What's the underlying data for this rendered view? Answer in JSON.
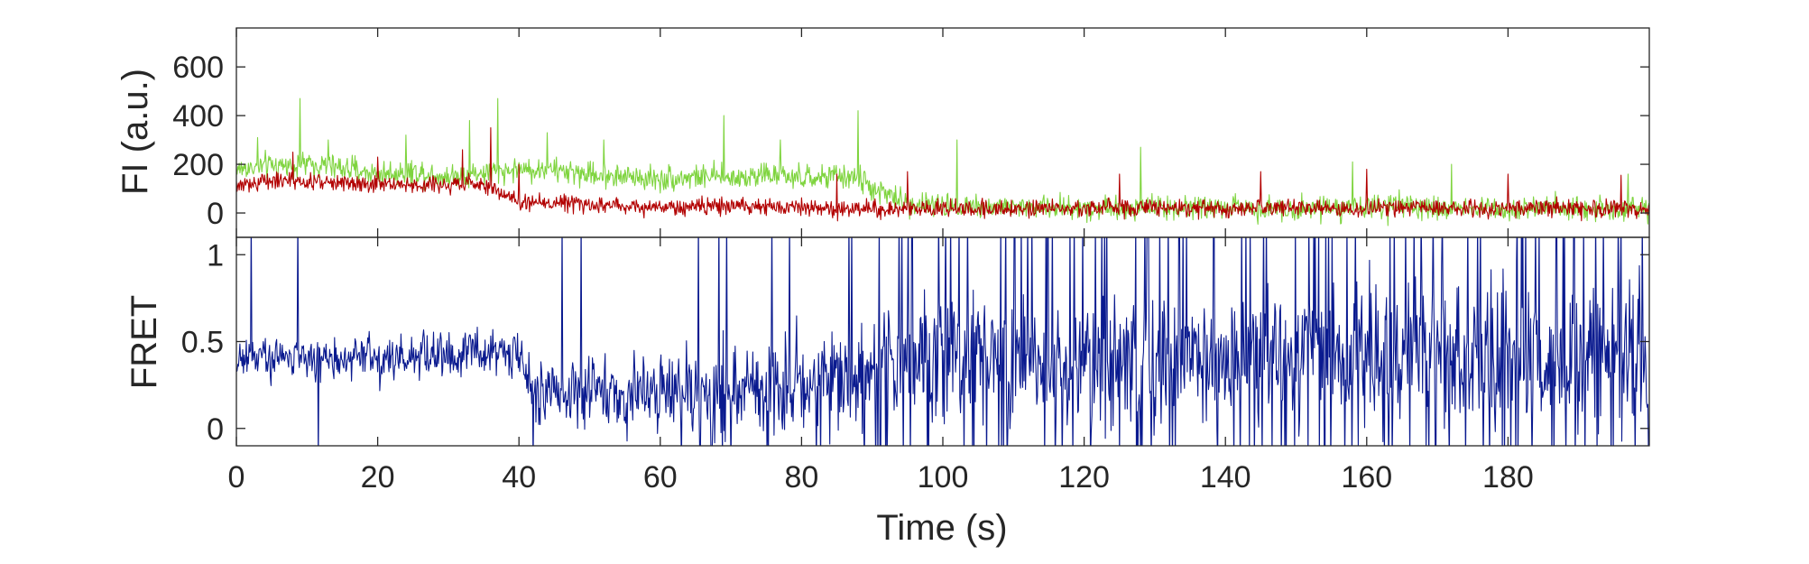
{
  "chart_data": [
    {
      "type": "line",
      "title": "",
      "xlabel": "",
      "ylabel": "FI (a.u.)",
      "xlim": [
        0,
        200
      ],
      "ylim": [
        -100,
        760
      ],
      "xticks": [
        0,
        20,
        40,
        60,
        80,
        100,
        120,
        140,
        160,
        180
      ],
      "xtick_labels": [],
      "yticks": [
        0,
        200,
        400,
        600
      ],
      "ytick_labels": [
        "0",
        "200",
        "400",
        "600"
      ],
      "grid": false,
      "legend": "none",
      "series": [
        {
          "color": "#7fd43f",
          "points": [
            [
              0,
              180
            ],
            [
              5,
              195
            ],
            [
              10,
              200
            ],
            [
              15,
              185
            ],
            [
              20,
              160
            ],
            [
              25,
              170
            ],
            [
              30,
              150
            ],
            [
              35,
              165
            ],
            [
              40,
              180
            ],
            [
              45,
              175
            ],
            [
              50,
              160
            ],
            [
              55,
              150
            ],
            [
              60,
              140
            ],
            [
              65,
              150
            ],
            [
              70,
              145
            ],
            [
              75,
              160
            ],
            [
              80,
              140
            ],
            [
              85,
              150
            ],
            [
              88,
              145
            ],
            [
              90,
              100
            ],
            [
              95,
              40
            ],
            [
              100,
              30
            ],
            [
              110,
              25
            ],
            [
              120,
              20
            ],
            [
              130,
              25
            ],
            [
              140,
              20
            ],
            [
              150,
              20
            ],
            [
              160,
              25
            ],
            [
              170,
              20
            ],
            [
              180,
              20
            ],
            [
              190,
              20
            ],
            [
              200,
              20
            ]
          ],
          "noise": 50,
          "spikes": [
            [
              3,
              310
            ],
            [
              9,
              470
            ],
            [
              13,
              300
            ],
            [
              24,
              320
            ],
            [
              33,
              380
            ],
            [
              37,
              470
            ],
            [
              44,
              330
            ],
            [
              52,
              300
            ],
            [
              69,
              400
            ],
            [
              77,
              300
            ],
            [
              88,
              420
            ],
            [
              102,
              300
            ],
            [
              128,
              270
            ],
            [
              158,
              210
            ],
            [
              172,
              200
            ],
            [
              197,
              160
            ]
          ]
        },
        {
          "color": "#b20000",
          "points": [
            [
              0,
              105
            ],
            [
              5,
              140
            ],
            [
              10,
              125
            ],
            [
              15,
              130
            ],
            [
              20,
              120
            ],
            [
              25,
              115
            ],
            [
              30,
              120
            ],
            [
              35,
              115
            ],
            [
              40,
              45
            ],
            [
              45,
              40
            ],
            [
              50,
              35
            ],
            [
              60,
              25
            ],
            [
              70,
              30
            ],
            [
              80,
              20
            ],
            [
              90,
              15
            ],
            [
              100,
              20
            ],
            [
              110,
              20
            ],
            [
              120,
              20
            ],
            [
              130,
              20
            ],
            [
              140,
              20
            ],
            [
              150,
              20
            ],
            [
              160,
              20
            ],
            [
              170,
              20
            ],
            [
              180,
              20
            ],
            [
              190,
              20
            ],
            [
              200,
              15
            ]
          ],
          "noise": 35,
          "spikes": [
            [
              8,
              250
            ],
            [
              20,
              230
            ],
            [
              32,
              260
            ],
            [
              36,
              350
            ],
            [
              40,
              200
            ],
            [
              85,
              160
            ],
            [
              95,
              170
            ],
            [
              125,
              160
            ],
            [
              145,
              170
            ],
            [
              160,
              180
            ],
            [
              180,
              160
            ],
            [
              196,
              155
            ]
          ]
        }
      ]
    },
    {
      "type": "line",
      "title": "",
      "xlabel": "Time (s)",
      "ylabel": "FRET",
      "xlim": [
        0,
        200
      ],
      "ylim": [
        -0.1,
        1.1
      ],
      "xticks": [
        0,
        20,
        40,
        60,
        80,
        100,
        120,
        140,
        160,
        180
      ],
      "xtick_labels": [
        "0",
        "20",
        "40",
        "60",
        "80",
        "100",
        "120",
        "140",
        "160",
        "180"
      ],
      "yticks": [
        0,
        0.5,
        1
      ],
      "ytick_labels": [
        "0",
        "0.5",
        "1"
      ],
      "grid": false,
      "legend": "none",
      "series": [
        {
          "color": "#0a1a8f",
          "points": [
            [
              0,
              0.4
            ],
            [
              10,
              0.42
            ],
            [
              20,
              0.4
            ],
            [
              30,
              0.42
            ],
            [
              35,
              0.45
            ],
            [
              40,
              0.45
            ],
            [
              42,
              0.22
            ],
            [
              60,
              0.2
            ],
            [
              80,
              0.25
            ],
            [
              90,
              0.35
            ],
            [
              100,
              0.4
            ],
            [
              120,
              0.4
            ],
            [
              140,
              0.4
            ],
            [
              160,
              0.42
            ],
            [
              180,
              0.42
            ],
            [
              200,
              0.42
            ]
          ],
          "noise": [
            [
              0,
              0.12
            ],
            [
              40,
              0.14
            ],
            [
              45,
              0.2
            ],
            [
              90,
              0.35
            ],
            [
              200,
              0.4
            ]
          ]
        }
      ]
    }
  ]
}
